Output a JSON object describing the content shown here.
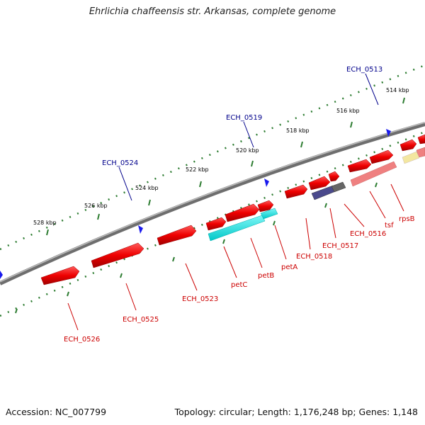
{
  "title": "Ehrlichia chaffeensis str. Arkansas, complete genome",
  "footer": {
    "accession": "Accession: NC_007799",
    "summary": "Topology: circular; Length: 1,176,248 bp; Genes: 1,148"
  },
  "colors": {
    "backbone": "#808080",
    "tick": "#2e7d32",
    "gene": "#ee0000",
    "cds_rna": "#00e5e5",
    "cds_dark": "#4b4a8c",
    "cds_gray": "#666666",
    "cds_pink": "#ef8080",
    "cds_yellow": "#f3e7a0",
    "marker": "#1a1aee",
    "label_blue": "#00008b",
    "label_red": "#cc0000"
  },
  "scale": {
    "ticks": [
      {
        "label": "514 kbp"
      },
      {
        "label": "516 kbp"
      },
      {
        "label": "518 kbp"
      },
      {
        "label": "520 kbp"
      },
      {
        "label": "522 kbp"
      },
      {
        "label": "524 kbp"
      },
      {
        "label": "526 kbp"
      },
      {
        "label": "528 kbp"
      }
    ]
  },
  "markers": [
    {
      "label": "ECH_0513"
    },
    {
      "label": "ECH_0519"
    },
    {
      "label": "ECH_0524"
    }
  ],
  "features": [
    {
      "label": "ECH_0526"
    },
    {
      "label": "ECH_0525"
    },
    {
      "label": "ECH_0523"
    },
    {
      "label": "petC"
    },
    {
      "label": "petB"
    },
    {
      "label": "petA"
    },
    {
      "label": "ECH_0518"
    },
    {
      "label": "ECH_0517"
    },
    {
      "label": "ECH_0516"
    },
    {
      "label": "tsf"
    },
    {
      "label": "rpsB"
    }
  ]
}
